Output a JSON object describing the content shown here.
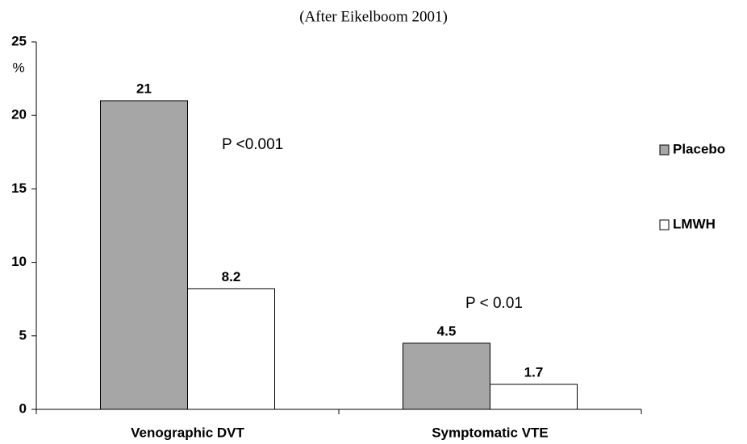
{
  "chart_data": {
    "type": "bar",
    "title": "(After Eikelboom 2001)",
    "y_label": "%",
    "categories": [
      "Venographic DVT",
      "Symptomatic VTE"
    ],
    "series": [
      {
        "name": "Placebo",
        "color": "#a6a6a6",
        "values": [
          21,
          4.5
        ]
      },
      {
        "name": "LMWH",
        "color": "#ffffff",
        "values": [
          8.2,
          1.7
        ]
      }
    ],
    "annotations": [
      "P <0.001",
      "P < 0.01"
    ],
    "ylim": [
      0,
      25
    ],
    "yticks": [
      0,
      5,
      10,
      15,
      20,
      25
    ],
    "legend": "right"
  }
}
